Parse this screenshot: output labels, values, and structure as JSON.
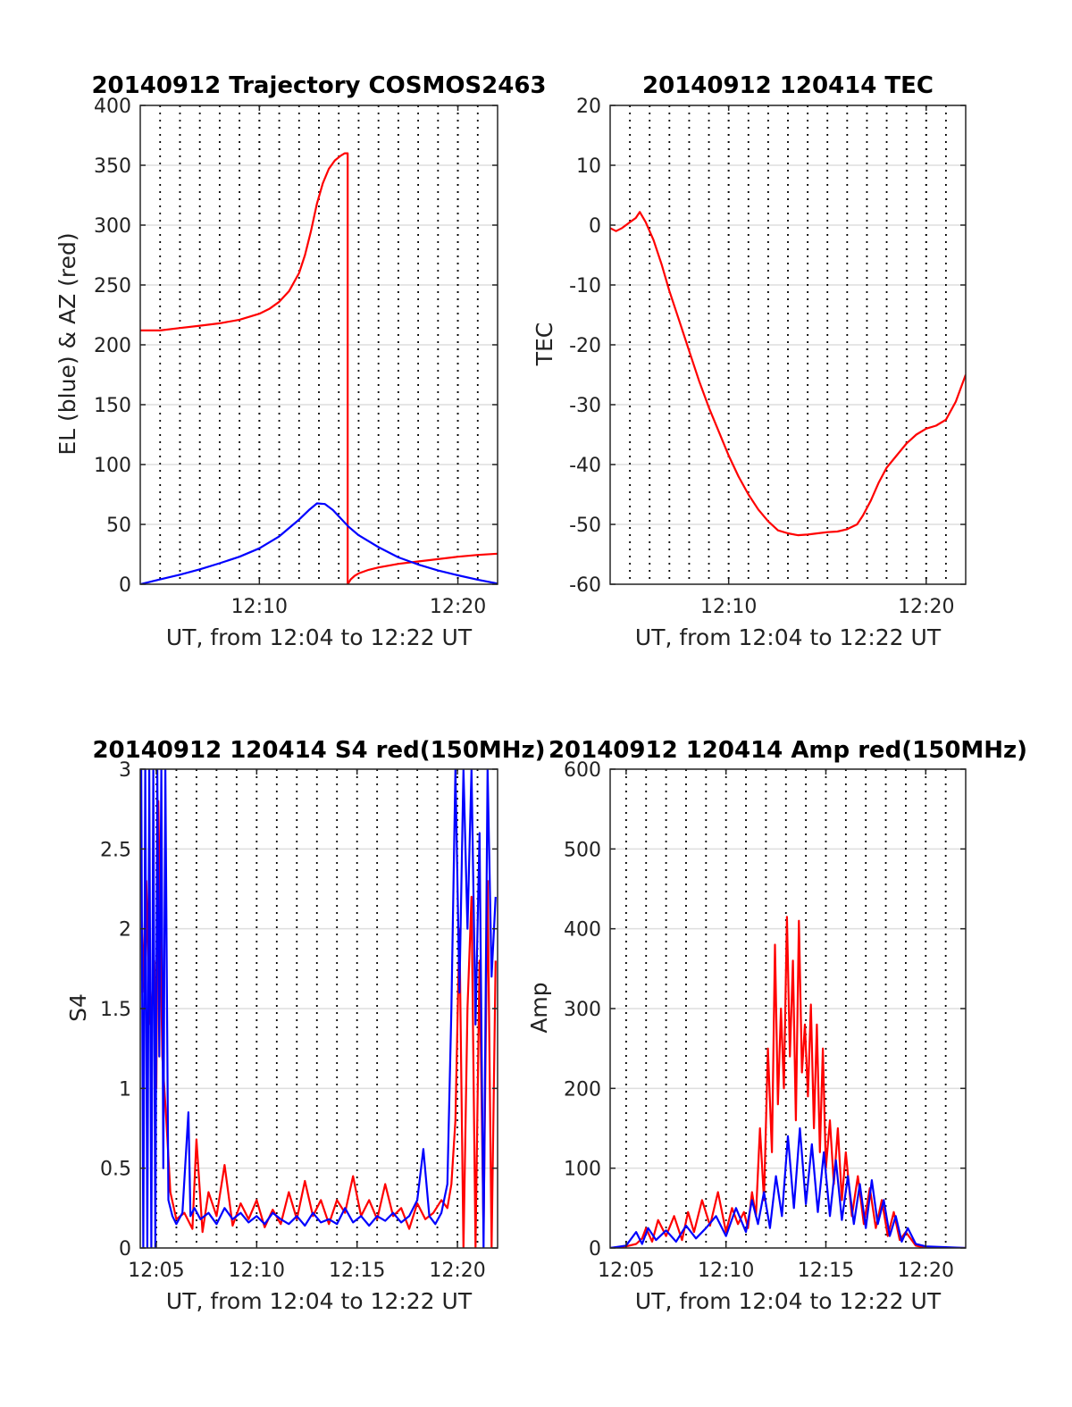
{
  "chart_data": [
    {
      "type": "line",
      "title": "20140912 Trajectory COSMOS2463",
      "xlabel": "UT, from 12:04 to 12:22 UT",
      "ylabel": "EL (blue) & AZ (red)",
      "xlim": [
        4,
        22
      ],
      "ylim": [
        0,
        400
      ],
      "xticks": [
        10,
        20
      ],
      "xtick_labels": [
        "12:10",
        "12:20"
      ],
      "yticks": [
        0,
        50,
        100,
        150,
        200,
        250,
        300,
        350,
        400
      ],
      "ytick_labels": [
        "0",
        "50",
        "100",
        "150",
        "200",
        "250",
        "300",
        "350",
        "400"
      ],
      "vlines": [
        5,
        6,
        7,
        8,
        9,
        10,
        11,
        12,
        13,
        14,
        15,
        16,
        17,
        18,
        19,
        20,
        21
      ],
      "grid": true,
      "series": [
        {
          "color": "#ff0000",
          "x": [
            4.0,
            5.0,
            6.0,
            7.0,
            8.0,
            9.0,
            10.0,
            10.5,
            11.0,
            11.5,
            12.0,
            12.3,
            12.6,
            12.9,
            13.2,
            13.5,
            13.8,
            14.1,
            14.3,
            14.45,
            14.45,
            14.6,
            14.8,
            15.0,
            15.5,
            16.0,
            17.0,
            18.0,
            19.0,
            20.0,
            21.0,
            22.0
          ],
          "y": [
            212,
            212,
            214,
            216,
            218,
            221,
            226,
            230,
            236,
            245,
            260,
            275,
            295,
            318,
            335,
            347,
            354,
            358,
            360,
            360,
            0,
            4,
            7,
            9,
            12,
            14,
            17,
            19,
            21,
            23,
            24.5,
            25.5
          ]
        },
        {
          "color": "#0000ff",
          "x": [
            4.0,
            5.0,
            6.0,
            7.0,
            8.0,
            9.0,
            10.0,
            11.0,
            12.0,
            12.5,
            12.9,
            13.3,
            13.7,
            14.5,
            15.0,
            16.0,
            17.0,
            18.0,
            19.0,
            20.0,
            21.0,
            22.0
          ],
          "y": [
            0,
            4,
            8,
            12.5,
            17.5,
            23,
            30,
            40,
            54,
            62,
            67.5,
            67,
            62,
            48,
            41,
            31,
            22.5,
            16.5,
            11.5,
            7.5,
            3.8,
            0.5
          ]
        }
      ]
    },
    {
      "type": "line",
      "title": "20140912 120414 TEC",
      "xlabel": "UT, from 12:04 to 12:22 UT",
      "ylabel": "TEC",
      "xlim": [
        4,
        22
      ],
      "ylim": [
        -60,
        20
      ],
      "xticks": [
        10,
        20
      ],
      "xtick_labels": [
        "12:10",
        "12:20"
      ],
      "yticks": [
        -60,
        -50,
        -40,
        -30,
        -20,
        -10,
        0,
        10,
        20
      ],
      "ytick_labels": [
        "-60",
        "-50",
        "-40",
        "-30",
        "-20",
        "-10",
        "0",
        "10",
        "20"
      ],
      "vlines": [
        5,
        6,
        7,
        8,
        9,
        10,
        11,
        12,
        13,
        14,
        15,
        16,
        17,
        18,
        19,
        20,
        21
      ],
      "grid": true,
      "series": [
        {
          "color": "#ff0000",
          "x": [
            4.0,
            4.3,
            4.6,
            5.0,
            5.3,
            5.5,
            5.8,
            6.2,
            6.6,
            7.0,
            7.5,
            8.0,
            8.5,
            9.0,
            9.5,
            10.0,
            10.5,
            11.0,
            11.5,
            12.0,
            12.5,
            13.0,
            13.5,
            14.0,
            14.5,
            15.0,
            15.5,
            16.0,
            16.5,
            16.8,
            17.2,
            17.6,
            18.0,
            18.5,
            19.0,
            19.5,
            20.0,
            20.5,
            21.0,
            21.5,
            22.0
          ],
          "y": [
            -0.5,
            -1.0,
            -0.5,
            0.5,
            1.2,
            2.2,
            0.5,
            -2.5,
            -6.5,
            -11,
            -16,
            -21,
            -26,
            -30.5,
            -34.5,
            -38.5,
            -42,
            -45,
            -47.5,
            -49.5,
            -51,
            -51.5,
            -51.8,
            -51.7,
            -51.5,
            -51.3,
            -51.2,
            -50.8,
            -50,
            -48.5,
            -46,
            -43,
            -40.5,
            -38.5,
            -36.5,
            -35,
            -34,
            -33.5,
            -32.5,
            -29.5,
            -25
          ]
        }
      ]
    },
    {
      "type": "line",
      "title": "20140912 120414 S4 red(150MHz)",
      "xlabel": "UT, from 12:04 to 12:22 UT",
      "ylabel": "S4",
      "xlim": [
        4.2,
        22
      ],
      "ylim": [
        0,
        3
      ],
      "xticks": [
        5,
        10,
        15,
        20
      ],
      "xtick_labels": [
        "12:05",
        "12:10",
        "12:15",
        "12:20"
      ],
      "yticks": [
        0,
        0.5,
        1,
        1.5,
        2,
        2.5,
        3
      ],
      "ytick_labels": [
        "0",
        "0.5",
        "1",
        "1.5",
        "2",
        "2.5",
        "3"
      ],
      "vlines": [
        6,
        7,
        8,
        9,
        11,
        12,
        13,
        14,
        16,
        17,
        18,
        19,
        21
      ],
      "grid": true,
      "series": [
        {
          "color": "#ff0000",
          "x": [
            4.3,
            4.5,
            4.7,
            4.9,
            5.0,
            5.1,
            5.3,
            5.5,
            5.7,
            6.0,
            6.4,
            6.8,
            7.0,
            7.3,
            7.6,
            8.0,
            8.4,
            8.8,
            9.2,
            9.6,
            10.0,
            10.4,
            10.8,
            11.2,
            11.6,
            12.0,
            12.4,
            12.8,
            13.2,
            13.6,
            14.0,
            14.4,
            14.8,
            15.2,
            15.6,
            16.0,
            16.4,
            16.8,
            17.2,
            17.6,
            18.0,
            18.4,
            18.8,
            19.2,
            19.5,
            19.7,
            19.9,
            20.1,
            20.3,
            20.5,
            20.7,
            20.9,
            21.1,
            21.3,
            21.5,
            21.7,
            21.9
          ],
          "y": [
            1.6,
            2.3,
            1.4,
            1.8,
            1.0,
            2.8,
            1.2,
            0.8,
            0.35,
            0.18,
            0.22,
            0.12,
            0.68,
            0.1,
            0.35,
            0.2,
            0.52,
            0.14,
            0.28,
            0.18,
            0.3,
            0.13,
            0.24,
            0.15,
            0.35,
            0.18,
            0.42,
            0.2,
            0.3,
            0.15,
            0.3,
            0.22,
            0.45,
            0.2,
            0.3,
            0.18,
            0.4,
            0.2,
            0.25,
            0.12,
            0.28,
            0.18,
            0.22,
            0.3,
            0.25,
            0.4,
            0.8,
            2.0,
            0.0,
            1.5,
            2.2,
            0.0,
            1.8,
            0.1,
            2.3,
            0.0,
            1.8
          ]
        },
        {
          "color": "#0000ff",
          "x": [
            4.25,
            4.35,
            4.45,
            4.55,
            4.65,
            4.75,
            4.85,
            4.95,
            5.05,
            5.15,
            5.25,
            5.35,
            5.45,
            5.6,
            5.8,
            6.0,
            6.3,
            6.6,
            6.7,
            6.9,
            7.2,
            7.6,
            8.0,
            8.4,
            8.8,
            9.2,
            9.6,
            10.0,
            10.4,
            10.8,
            11.2,
            11.6,
            12.0,
            12.4,
            12.8,
            13.2,
            13.6,
            14.0,
            14.4,
            14.8,
            15.2,
            15.6,
            16.0,
            16.4,
            16.8,
            17.2,
            17.6,
            18.0,
            18.3,
            18.6,
            18.9,
            19.2,
            19.5,
            19.7,
            19.9,
            20.1,
            20.3,
            20.5,
            20.7,
            20.9,
            21.1,
            21.3,
            21.5,
            21.7,
            21.9
          ],
          "y": [
            3.0,
            0.0,
            3.0,
            0.0,
            3.0,
            0.0,
            3.0,
            0.0,
            3.0,
            1.2,
            3.0,
            0.5,
            3.0,
            0.3,
            0.2,
            0.15,
            0.22,
            0.85,
            0.2,
            0.25,
            0.18,
            0.22,
            0.15,
            0.25,
            0.18,
            0.22,
            0.16,
            0.2,
            0.15,
            0.22,
            0.18,
            0.15,
            0.2,
            0.14,
            0.22,
            0.16,
            0.18,
            0.15,
            0.25,
            0.16,
            0.2,
            0.14,
            0.2,
            0.17,
            0.22,
            0.16,
            0.2,
            0.3,
            0.62,
            0.2,
            0.15,
            0.22,
            0.4,
            1.5,
            3.0,
            1.6,
            3.0,
            2.0,
            3.0,
            1.4,
            2.6,
            0.0,
            3.0,
            1.7,
            2.2
          ]
        }
      ]
    },
    {
      "type": "line",
      "title": "20140912 120414 Amp red(150MHz)",
      "xlabel": "UT, from 12:04 to 12:22 UT",
      "ylabel": "Amp",
      "xlim": [
        4.2,
        22
      ],
      "ylim": [
        0,
        600
      ],
      "xticks": [
        5,
        10,
        15,
        20
      ],
      "xtick_labels": [
        "12:05",
        "12:10",
        "12:15",
        "12:20"
      ],
      "yticks": [
        0,
        100,
        200,
        300,
        400,
        500,
        600
      ],
      "ytick_labels": [
        "0",
        "100",
        "200",
        "300",
        "400",
        "500",
        "600"
      ],
      "vlines": [
        6,
        7,
        8,
        9,
        11,
        12,
        13,
        14,
        16,
        17,
        18,
        19,
        21
      ],
      "grid": true,
      "series": [
        {
          "color": "#ff0000",
          "x": [
            4.2,
            5.0,
            5.5,
            5.8,
            6.0,
            6.3,
            6.6,
            7.0,
            7.4,
            7.8,
            8.1,
            8.4,
            8.8,
            9.2,
            9.6,
            10.0,
            10.3,
            10.6,
            10.9,
            11.1,
            11.3,
            11.5,
            11.7,
            11.9,
            12.1,
            12.3,
            12.45,
            12.6,
            12.75,
            12.9,
            13.05,
            13.2,
            13.35,
            13.5,
            13.65,
            13.8,
            13.95,
            14.1,
            14.25,
            14.4,
            14.55,
            14.7,
            14.85,
            15.0,
            15.2,
            15.4,
            15.6,
            15.8,
            16.0,
            16.3,
            16.6,
            16.9,
            17.2,
            17.5,
            17.8,
            18.1,
            18.4,
            18.7,
            19.0,
            19.5,
            20.0,
            22.0
          ],
          "y": [
            0,
            2,
            5,
            12,
            25,
            8,
            35,
            15,
            40,
            10,
            45,
            20,
            60,
            28,
            70,
            20,
            50,
            30,
            45,
            25,
            70,
            40,
            150,
            60,
            250,
            120,
            380,
            180,
            300,
            200,
            415,
            240,
            360,
            160,
            410,
            220,
            280,
            190,
            305,
            150,
            280,
            120,
            250,
            100,
            160,
            80,
            150,
            60,
            120,
            40,
            90,
            30,
            75,
            25,
            60,
            15,
            45,
            10,
            20,
            3,
            0,
            0
          ]
        },
        {
          "color": "#0000ff",
          "x": [
            4.2,
            5.0,
            5.5,
            5.8,
            6.1,
            6.5,
            7.0,
            7.5,
            8.0,
            8.5,
            9.0,
            9.5,
            10.0,
            10.5,
            11.0,
            11.3,
            11.6,
            11.9,
            12.2,
            12.5,
            12.8,
            13.1,
            13.4,
            13.7,
            14.0,
            14.3,
            14.6,
            14.9,
            15.2,
            15.5,
            15.8,
            16.1,
            16.4,
            16.7,
            17.0,
            17.3,
            17.6,
            17.9,
            18.2,
            18.5,
            18.8,
            19.1,
            19.5,
            20.0,
            22.0
          ],
          "y": [
            0,
            3,
            20,
            5,
            25,
            10,
            22,
            8,
            28,
            12,
            25,
            40,
            15,
            50,
            20,
            60,
            30,
            70,
            25,
            90,
            40,
            140,
            50,
            150,
            55,
            130,
            45,
            120,
            40,
            110,
            35,
            90,
            30,
            80,
            25,
            85,
            30,
            60,
            15,
            40,
            8,
            25,
            5,
            2,
            0
          ]
        }
      ]
    }
  ]
}
